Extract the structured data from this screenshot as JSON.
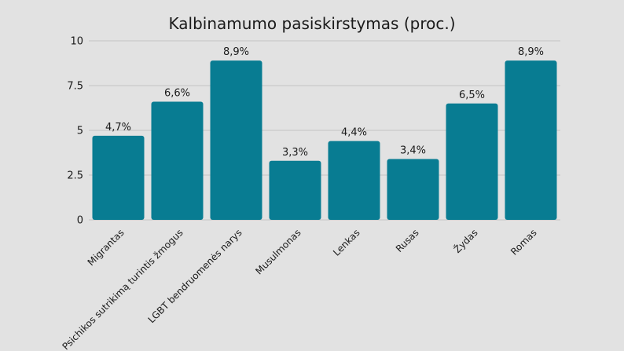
{
  "chart_data": {
    "type": "bar",
    "title": "Kalbinamumo pasiskirstymas (proc.)",
    "categories": [
      "Migrantas",
      "Psichikos sutrikimą turintis žmogus",
      "LGBT bendruomenės narys",
      "Musulmonas",
      "Lenkas",
      "Rusas",
      "Žydas",
      "Romas"
    ],
    "values": [
      4.7,
      6.6,
      8.9,
      3.3,
      4.4,
      3.4,
      6.5,
      8.9
    ],
    "data_labels": [
      "4,7%",
      "6,6%",
      "8,9%",
      "3,3%",
      "4,4%",
      "3,4%",
      "6,5%",
      "8,9%"
    ],
    "yticks": [
      {
        "value": 0,
        "label": "0"
      },
      {
        "value": 2.5,
        "label": "2.5"
      },
      {
        "value": 5,
        "label": "5"
      },
      {
        "value": 7.5,
        "label": "7.5"
      },
      {
        "value": 10,
        "label": "10"
      }
    ],
    "ylim": [
      0,
      10
    ],
    "grid": true,
    "xlabel": "",
    "ylabel": "",
    "colors": {
      "bar": "#087c92",
      "background": "#e2e2e2"
    }
  }
}
